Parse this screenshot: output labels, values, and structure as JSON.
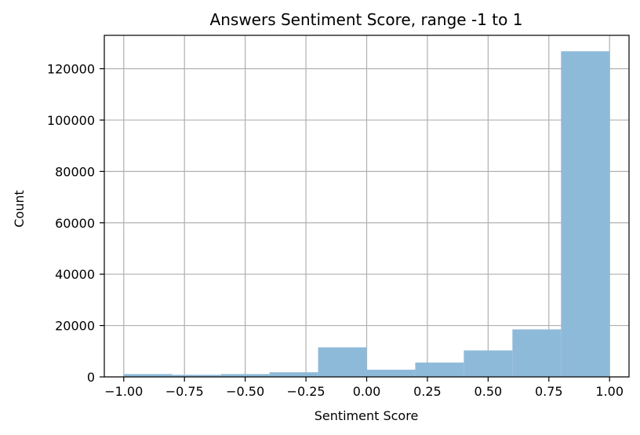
{
  "chart_data": {
    "type": "bar",
    "title": "Answers Sentiment Score, range -1 to 1",
    "xlabel": "Sentiment Score",
    "ylabel": "Count",
    "xlim": [
      -1.08,
      1.08
    ],
    "ylim": [
      0,
      133000
    ],
    "grid": true,
    "bar_color": "#8ebad9",
    "x_ticks": [
      -1.0,
      -0.75,
      -0.5,
      -0.25,
      0.0,
      0.25,
      0.5,
      0.75,
      1.0
    ],
    "x_tick_labels": [
      "−1.00",
      "−0.75",
      "−0.50",
      "−0.25",
      "0.00",
      "0.25",
      "0.50",
      "0.75",
      "1.00"
    ],
    "y_ticks": [
      0,
      20000,
      40000,
      60000,
      80000,
      100000,
      120000
    ],
    "y_tick_labels": [
      "0",
      "20000",
      "40000",
      "60000",
      "80000",
      "100000",
      "120000"
    ],
    "bins": [
      {
        "start": -1.0,
        "end": -0.8,
        "value": 1100
      },
      {
        "start": -0.8,
        "end": -0.6,
        "value": 800
      },
      {
        "start": -0.6,
        "end": -0.4,
        "value": 1100
      },
      {
        "start": -0.4,
        "end": -0.2,
        "value": 1800
      },
      {
        "start": -0.2,
        "end": 0.0,
        "value": 11500
      },
      {
        "start": 0.0,
        "end": 0.2,
        "value": 2800
      },
      {
        "start": 0.2,
        "end": 0.4,
        "value": 5600
      },
      {
        "start": 0.4,
        "end": 0.6,
        "value": 10300
      },
      {
        "start": 0.6,
        "end": 0.8,
        "value": 18500
      },
      {
        "start": 0.8,
        "end": 1.0,
        "value": 126800
      }
    ]
  }
}
